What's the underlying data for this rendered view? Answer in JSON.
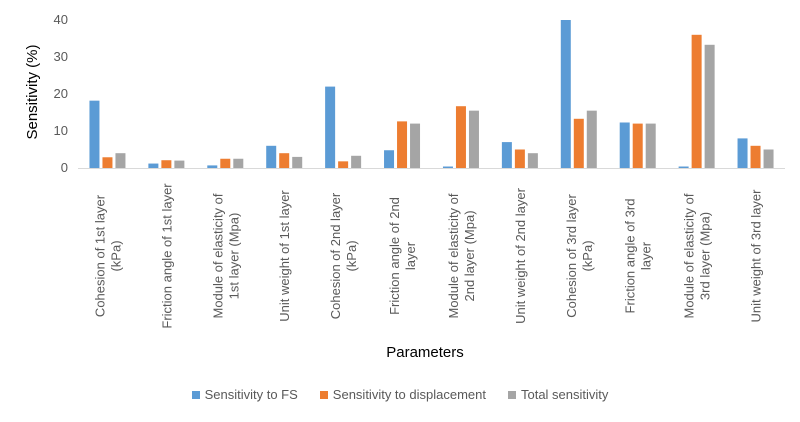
{
  "chart_data": {
    "type": "bar",
    "categories": [
      [
        "Cohesion of 1st layer",
        "(kPa)"
      ],
      [
        "Friction angle of 1st layer"
      ],
      [
        "Module of elasticity of",
        "1st layer (Mpa)"
      ],
      [
        "Unit weight of 1st layer"
      ],
      [
        "Cohesion of 2nd layer",
        "(kPa)"
      ],
      [
        "Friction angle of 2nd",
        "layer"
      ],
      [
        "Module of elasticity of",
        "2nd layer (Mpa)"
      ],
      [
        "Unit weight of 2nd layer"
      ],
      [
        "Cohesion of 3rd layer",
        "(kPa)"
      ],
      [
        "Friction angle of 3rd",
        "layer"
      ],
      [
        "Module of elasticity of",
        "3rd layer (Mpa)"
      ],
      [
        "Unit weight of 3rd layer"
      ]
    ],
    "series": [
      {
        "name": "Sensitivity to FS",
        "color": "#5B9BD5",
        "values": [
          18.2,
          1.2,
          0.7,
          6.0,
          22.0,
          4.8,
          0.4,
          7.0,
          40.0,
          12.3,
          0.4,
          8.0
        ]
      },
      {
        "name": "Sensitivity to displacement",
        "color": "#ED7D31",
        "values": [
          2.9,
          2.1,
          2.5,
          4.0,
          1.8,
          12.6,
          16.7,
          5.0,
          13.3,
          12.0,
          36.0,
          6.0
        ]
      },
      {
        "name": "Total sensitivity",
        "color": "#A5A5A5",
        "values": [
          4.0,
          2.0,
          2.5,
          3.0,
          3.3,
          12.0,
          15.5,
          4.0,
          15.5,
          12.0,
          33.3,
          5.0
        ]
      }
    ],
    "xlabel": "Parameters",
    "ylabel": "Sensitivity (%)",
    "ylim": [
      0,
      40
    ],
    "yticks": [
      "0",
      "10",
      "20",
      "30",
      "40"
    ],
    "grid": false,
    "legend_position": "bottom"
  }
}
